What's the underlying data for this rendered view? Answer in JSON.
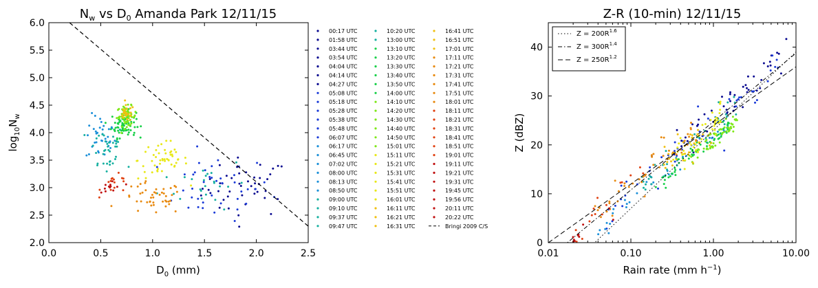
{
  "chart_data": [
    {
      "type": "scatter",
      "title_main": "N",
      "title_sub": "w",
      "title_mid": " vs D",
      "title_sub2": "0",
      "title_rest": " Amanda Park 12/11/15",
      "xlabel_main": "D",
      "xlabel_sub": "0",
      "xlabel_rest": " (mm)",
      "ylabel_main": "log",
      "ylabel_sub": "10",
      "ylabel_rest": "N",
      "ylabel_sub2": "w",
      "xlim": [
        0.0,
        2.5
      ],
      "ylim": [
        2.0,
        6.0
      ],
      "x_ticks": [
        "0.0",
        "0.5",
        "1.0",
        "1.5",
        "2.0",
        "2.5"
      ],
      "y_ticks": [
        "2.0",
        "2.5",
        "3.0",
        "3.5",
        "4.0",
        "4.5",
        "5.0",
        "5.5",
        "6.0"
      ],
      "reference_line": {
        "name": "Bringi 2009 C/S",
        "x": [
          0.2,
          2.5
        ],
        "y": [
          6.0,
          2.3
        ],
        "style": "dashed"
      },
      "legend_placement": "right-outside",
      "legend_entries": [
        "00:17 UTC",
        "01:58 UTC",
        "03:44 UTC",
        "03:54 UTC",
        "04:04 UTC",
        "04:14 UTC",
        "04:27 UTC",
        "05:08 UTC",
        "05:18 UTC",
        "05:28 UTC",
        "05:38 UTC",
        "05:48 UTC",
        "06:07 UTC",
        "06:17 UTC",
        "06:45 UTC",
        "07:02 UTC",
        "08:00 UTC",
        "08:13 UTC",
        "08:50 UTC",
        "09:00 UTC",
        "09:10 UTC",
        "09:37 UTC",
        "09:47 UTC",
        "10:20 UTC",
        "13:00 UTC",
        "13:10 UTC",
        "13:20 UTC",
        "13:30 UTC",
        "13:40 UTC",
        "13:50 UTC",
        "14:00 UTC",
        "14:10 UTC",
        "14:20 UTC",
        "14:30 UTC",
        "14:40 UTC",
        "14:50 UTC",
        "15:01 UTC",
        "15:11 UTC",
        "15:21 UTC",
        "15:31 UTC",
        "15:41 UTC",
        "15:51 UTC",
        "16:01 UTC",
        "16:11 UTC",
        "16:21 UTC",
        "16:31 UTC",
        "16:41 UTC",
        "16:51 UTC",
        "17:01 UTC",
        "17:11 UTC",
        "17:21 UTC",
        "17:31 UTC",
        "17:41 UTC",
        "17:51 UTC",
        "18:01 UTC",
        "18:11 UTC",
        "18:21 UTC",
        "18:31 UTC",
        "18:41 UTC",
        "18:51 UTC",
        "19:01 UTC",
        "19:11 UTC",
        "19:21 UTC",
        "19:31 UTC",
        "19:45 UTC",
        "19:56 UTC",
        "20:11 UTC",
        "20:22 UTC"
      ],
      "clusters": [
        {
          "color": "#0a0a90",
          "center": [
            1.9,
            3.0
          ],
          "spread": [
            0.35,
            0.45
          ],
          "n": 45
        },
        {
          "color": "#1a3ad8",
          "center": [
            1.6,
            3.0
          ],
          "spread": [
            0.45,
            0.5
          ],
          "n": 40
        },
        {
          "color": "#1a8fd8",
          "center": [
            0.5,
            3.9
          ],
          "spread": [
            0.12,
            0.35
          ],
          "n": 35
        },
        {
          "color": "#16b0a0",
          "center": [
            0.55,
            3.7
          ],
          "spread": [
            0.15,
            0.4
          ],
          "n": 35
        },
        {
          "color": "#16b0a0",
          "center": [
            1.5,
            3.1
          ],
          "spread": [
            0.35,
            0.4
          ],
          "n": 25
        },
        {
          "color": "#18d048",
          "center": [
            0.72,
            4.15
          ],
          "spread": [
            0.1,
            0.2
          ],
          "n": 70
        },
        {
          "color": "#7ee818",
          "center": [
            0.75,
            4.3
          ],
          "spread": [
            0.08,
            0.15
          ],
          "n": 60
        },
        {
          "color": "#e8e818",
          "center": [
            1.1,
            3.5
          ],
          "spread": [
            0.2,
            0.3
          ],
          "n": 50
        },
        {
          "color": "#f0c010",
          "center": [
            0.75,
            4.35
          ],
          "spread": [
            0.06,
            0.12
          ],
          "n": 25
        },
        {
          "color": "#e88a10",
          "center": [
            1.0,
            2.8
          ],
          "spread": [
            0.25,
            0.25
          ],
          "n": 45
        },
        {
          "color": "#e04010",
          "center": [
            0.65,
            3.05
          ],
          "spread": [
            0.12,
            0.15
          ],
          "n": 15
        },
        {
          "color": "#c01010",
          "center": [
            0.6,
            3.0
          ],
          "spread": [
            0.1,
            0.15
          ],
          "n": 12
        }
      ]
    },
    {
      "type": "scatter",
      "title": "Z-R (10-min) 12/11/15",
      "xlabel_main": "Rain rate (mm h",
      "xlabel_sup": "−1",
      "xlabel_rest": ")",
      "ylabel": "Z (dBZ)",
      "xscale": "log",
      "xlim": [
        0.01,
        10.0
      ],
      "ylim": [
        0,
        45
      ],
      "x_ticks": [
        "0.01",
        "0.10",
        "1.00",
        "10.00"
      ],
      "y_ticks": [
        "0",
        "10",
        "20",
        "30",
        "40"
      ],
      "legend_placement": "upper-left",
      "relations": [
        {
          "label_main": "Z = 200R",
          "label_sup": "1.6",
          "a": 200,
          "b": 1.6,
          "style": "dotted"
        },
        {
          "label_main": "Z = 300R",
          "label_sup": "1.4",
          "a": 300,
          "b": 1.4,
          "style": "dashdot"
        },
        {
          "label_main": "Z = 250R",
          "label_sup": "1.2",
          "a": 250,
          "b": 1.2,
          "style": "dashed"
        }
      ],
      "clusters": [
        {
          "color": "#0a0a90",
          "logr": [
            -0.5,
            0.9
          ],
          "offset": 2.0,
          "spread": 1.8,
          "n": 50
        },
        {
          "color": "#1a3ad8",
          "logr": [
            -1.3,
            0.8
          ],
          "offset": 1.0,
          "spread": 2.0,
          "n": 50
        },
        {
          "color": "#1a8fd8",
          "logr": [
            -1.4,
            0.2
          ],
          "offset": -1.5,
          "spread": 1.5,
          "n": 35
        },
        {
          "color": "#16b0a0",
          "logr": [
            -0.9,
            0.3
          ],
          "offset": 0.0,
          "spread": 1.5,
          "n": 35
        },
        {
          "color": "#18d048",
          "logr": [
            -0.7,
            0.2
          ],
          "offset": -2.5,
          "spread": 1.0,
          "n": 55
        },
        {
          "color": "#7ee818",
          "logr": [
            -0.3,
            0.3
          ],
          "offset": -3.0,
          "spread": 1.0,
          "n": 55
        },
        {
          "color": "#e8e818",
          "logr": [
            -0.5,
            0.1
          ],
          "offset": 0.5,
          "spread": 1.5,
          "n": 45
        },
        {
          "color": "#f0c010",
          "logr": [
            -0.6,
            0.0
          ],
          "offset": 1.0,
          "spread": 1.5,
          "n": 30
        },
        {
          "color": "#e88a10",
          "logr": [
            -1.5,
            -0.2
          ],
          "offset": 2.5,
          "spread": 1.8,
          "n": 45
        },
        {
          "color": "#e04010",
          "logr": [
            -1.7,
            -0.8
          ],
          "offset": 2.0,
          "spread": 1.5,
          "n": 15
        },
        {
          "color": "#c01010",
          "logr": [
            -1.8,
            -1.2
          ],
          "offset": 1.0,
          "spread": 1.5,
          "n": 10
        }
      ]
    }
  ]
}
